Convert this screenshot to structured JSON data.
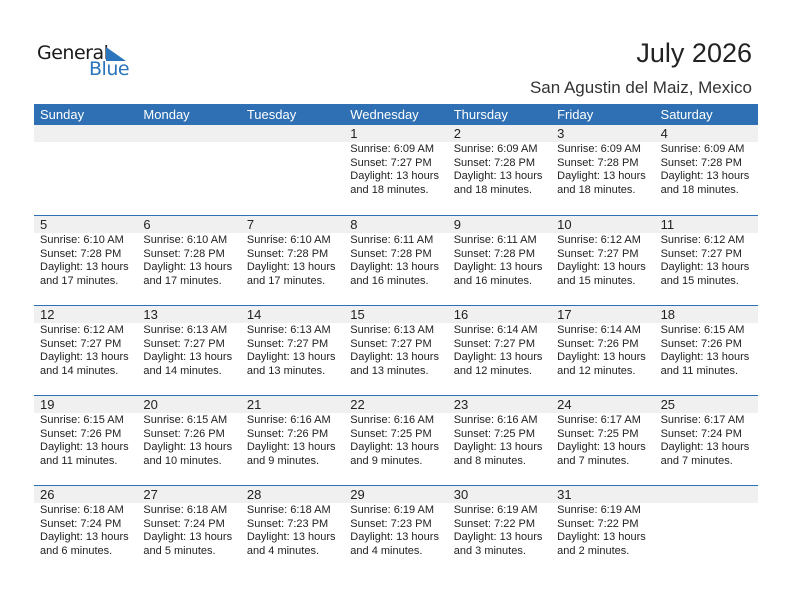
{
  "logo": {
    "word1": "General",
    "word2": "Blue",
    "accent": "#2a75bb"
  },
  "header": {
    "title": "July 2026",
    "location": "San Agustin del Maiz, Mexico"
  },
  "colors": {
    "header_bg": "#2e70b3",
    "date_strip": "#f0f0f0"
  },
  "weekdays": [
    "Sunday",
    "Monday",
    "Tuesday",
    "Wednesday",
    "Thursday",
    "Friday",
    "Saturday"
  ],
  "labels": {
    "sunrise": "Sunrise:",
    "sunset": "Sunset:",
    "daylight": "Daylight:",
    "and": "and"
  },
  "weeks": [
    [
      null,
      null,
      null,
      {
        "d": "1",
        "rise": "6:09 AM",
        "set": "7:27 PM",
        "hours": "13 hours",
        "min": "18 minutes."
      },
      {
        "d": "2",
        "rise": "6:09 AM",
        "set": "7:28 PM",
        "hours": "13 hours",
        "min": "18 minutes."
      },
      {
        "d": "3",
        "rise": "6:09 AM",
        "set": "7:28 PM",
        "hours": "13 hours",
        "min": "18 minutes."
      },
      {
        "d": "4",
        "rise": "6:09 AM",
        "set": "7:28 PM",
        "hours": "13 hours",
        "min": "18 minutes."
      }
    ],
    [
      {
        "d": "5",
        "rise": "6:10 AM",
        "set": "7:28 PM",
        "hours": "13 hours",
        "min": "17 minutes."
      },
      {
        "d": "6",
        "rise": "6:10 AM",
        "set": "7:28 PM",
        "hours": "13 hours",
        "min": "17 minutes."
      },
      {
        "d": "7",
        "rise": "6:10 AM",
        "set": "7:28 PM",
        "hours": "13 hours",
        "min": "17 minutes."
      },
      {
        "d": "8",
        "rise": "6:11 AM",
        "set": "7:28 PM",
        "hours": "13 hours",
        "min": "16 minutes."
      },
      {
        "d": "9",
        "rise": "6:11 AM",
        "set": "7:28 PM",
        "hours": "13 hours",
        "min": "16 minutes."
      },
      {
        "d": "10",
        "rise": "6:12 AM",
        "set": "7:27 PM",
        "hours": "13 hours",
        "min": "15 minutes."
      },
      {
        "d": "11",
        "rise": "6:12 AM",
        "set": "7:27 PM",
        "hours": "13 hours",
        "min": "15 minutes."
      }
    ],
    [
      {
        "d": "12",
        "rise": "6:12 AM",
        "set": "7:27 PM",
        "hours": "13 hours",
        "min": "14 minutes."
      },
      {
        "d": "13",
        "rise": "6:13 AM",
        "set": "7:27 PM",
        "hours": "13 hours",
        "min": "14 minutes."
      },
      {
        "d": "14",
        "rise": "6:13 AM",
        "set": "7:27 PM",
        "hours": "13 hours",
        "min": "13 minutes."
      },
      {
        "d": "15",
        "rise": "6:13 AM",
        "set": "7:27 PM",
        "hours": "13 hours",
        "min": "13 minutes."
      },
      {
        "d": "16",
        "rise": "6:14 AM",
        "set": "7:27 PM",
        "hours": "13 hours",
        "min": "12 minutes."
      },
      {
        "d": "17",
        "rise": "6:14 AM",
        "set": "7:26 PM",
        "hours": "13 hours",
        "min": "12 minutes."
      },
      {
        "d": "18",
        "rise": "6:15 AM",
        "set": "7:26 PM",
        "hours": "13 hours",
        "min": "11 minutes."
      }
    ],
    [
      {
        "d": "19",
        "rise": "6:15 AM",
        "set": "7:26 PM",
        "hours": "13 hours",
        "min": "11 minutes."
      },
      {
        "d": "20",
        "rise": "6:15 AM",
        "set": "7:26 PM",
        "hours": "13 hours",
        "min": "10 minutes."
      },
      {
        "d": "21",
        "rise": "6:16 AM",
        "set": "7:26 PM",
        "hours": "13 hours",
        "min": "9 minutes."
      },
      {
        "d": "22",
        "rise": "6:16 AM",
        "set": "7:25 PM",
        "hours": "13 hours",
        "min": "9 minutes."
      },
      {
        "d": "23",
        "rise": "6:16 AM",
        "set": "7:25 PM",
        "hours": "13 hours",
        "min": "8 minutes."
      },
      {
        "d": "24",
        "rise": "6:17 AM",
        "set": "7:25 PM",
        "hours": "13 hours",
        "min": "7 minutes."
      },
      {
        "d": "25",
        "rise": "6:17 AM",
        "set": "7:24 PM",
        "hours": "13 hours",
        "min": "7 minutes."
      }
    ],
    [
      {
        "d": "26",
        "rise": "6:18 AM",
        "set": "7:24 PM",
        "hours": "13 hours",
        "min": "6 minutes."
      },
      {
        "d": "27",
        "rise": "6:18 AM",
        "set": "7:24 PM",
        "hours": "13 hours",
        "min": "5 minutes."
      },
      {
        "d": "28",
        "rise": "6:18 AM",
        "set": "7:23 PM",
        "hours": "13 hours",
        "min": "4 minutes."
      },
      {
        "d": "29",
        "rise": "6:19 AM",
        "set": "7:23 PM",
        "hours": "13 hours",
        "min": "4 minutes."
      },
      {
        "d": "30",
        "rise": "6:19 AM",
        "set": "7:22 PM",
        "hours": "13 hours",
        "min": "3 minutes."
      },
      {
        "d": "31",
        "rise": "6:19 AM",
        "set": "7:22 PM",
        "hours": "13 hours",
        "min": "2 minutes."
      },
      null
    ]
  ]
}
